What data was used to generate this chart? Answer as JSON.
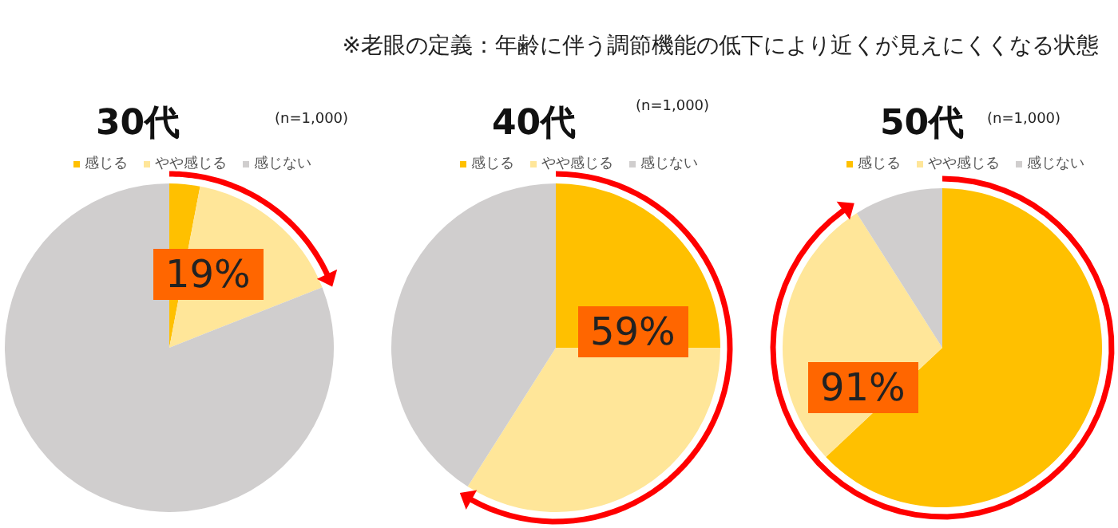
{
  "chart_data": [
    {
      "type": "pie",
      "title": "30代",
      "subtitle": "(n=1,000)",
      "categories": [
        "感じる",
        "やや感じる",
        "感じない"
      ],
      "values": [
        3,
        16,
        81
      ],
      "colors": [
        "#ffc000",
        "#ffe699",
        "#d0cece"
      ],
      "legend": "top",
      "annotations": [
        "※老眼の定義：年齢に伴う調節機能の低下により近くが見えにくくなる状態",
        "19%"
      ]
    },
    {
      "type": "pie",
      "title": "40代",
      "subtitle": "(n=1,000)",
      "categories": [
        "感じる",
        "やや感じる",
        "感じない"
      ],
      "values": [
        25,
        34,
        41
      ],
      "colors": [
        "#ffc000",
        "#ffe699",
        "#d0cece"
      ],
      "legend": "top",
      "annotations": [
        "59%"
      ]
    },
    {
      "type": "pie",
      "title": "50代",
      "subtitle": "(n=1,000)",
      "categories": [
        "感じる",
        "やや感じる",
        "感じない"
      ],
      "values": [
        63,
        28,
        9
      ],
      "colors": [
        "#ffc000",
        "#ffe699",
        "#d0cece"
      ],
      "legend": "top",
      "annotations": [
        "91%"
      ]
    }
  ]
}
